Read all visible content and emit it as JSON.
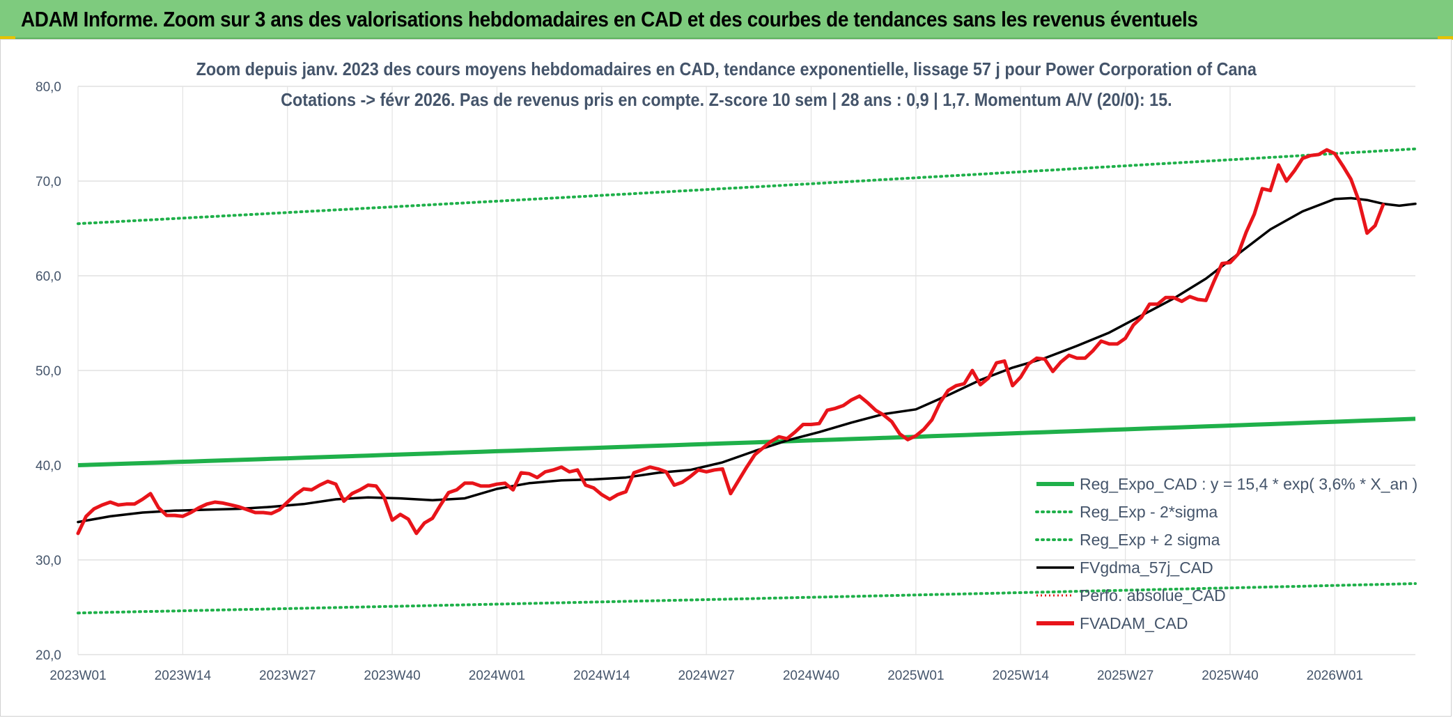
{
  "banner": {
    "title": "ADAM Informe. Zoom sur 3 ans des valorisations hebdomadaires en CAD et des courbes de tendances sans les revenus éventuels"
  },
  "chart_data": {
    "type": "line",
    "title": "Zoom depuis janv. 2023 des cours moyens hebdomadaires en CAD, tendance exponentielle, lissage 57 j pour Power Corporation of Cana",
    "subtitle": "Cotations -> févr 2026. Pas de revenus pris en compte. Z-score 10 sem | 28 ans : 0,9 | 1,7. Momentum A/V (20/0): 15.",
    "xlabel": "",
    "ylabel": "",
    "ylim": [
      20,
      80
    ],
    "yticks": [
      "80,0",
      "70,0",
      "60,0",
      "50,0",
      "40,0",
      "30,0",
      "20,0"
    ],
    "x_tick_labels": [
      "2023W01",
      "2023W14",
      "2023W27",
      "2023W40",
      "2024W01",
      "2024W14",
      "2024W27",
      "2024W40",
      "2025W01",
      "2025W14",
      "2025W27",
      "2025W40",
      "2026W01"
    ],
    "x_tick_index": [
      0,
      13,
      26,
      39,
      52,
      65,
      78,
      91,
      104,
      117,
      130,
      143,
      156
    ],
    "x_count": 166,
    "grid": true,
    "legend_position": "bottom-right",
    "series": [
      {
        "name": "Reg_Expo_CAD : y = 15,4 * exp( 3,6% *  X_an )",
        "color": "#1fb04a",
        "style": "thick",
        "start": 40.0,
        "end": 44.9
      },
      {
        "name": "Reg_Exp - 2*sigma",
        "color": "#1fb04a",
        "style": "dotted",
        "start": 24.4,
        "end": 27.5
      },
      {
        "name": "Reg_Exp + 2 sigma",
        "color": "#1fb04a",
        "style": "dotted",
        "start": 65.5,
        "end": 73.4
      },
      {
        "name": "FVgdma_57j_CAD",
        "color": "#000000",
        "style": "solid",
        "points": [
          [
            0,
            34.0
          ],
          [
            4,
            34.6
          ],
          [
            8,
            35.0
          ],
          [
            12,
            35.2
          ],
          [
            16,
            35.3
          ],
          [
            20,
            35.4
          ],
          [
            24,
            35.6
          ],
          [
            28,
            35.9
          ],
          [
            32,
            36.4
          ],
          [
            36,
            36.6
          ],
          [
            40,
            36.5
          ],
          [
            44,
            36.3
          ],
          [
            48,
            36.5
          ],
          [
            52,
            37.5
          ],
          [
            56,
            38.1
          ],
          [
            60,
            38.4
          ],
          [
            64,
            38.5
          ],
          [
            68,
            38.7
          ],
          [
            72,
            39.2
          ],
          [
            76,
            39.5
          ],
          [
            80,
            40.3
          ],
          [
            84,
            41.5
          ],
          [
            88,
            42.6
          ],
          [
            92,
            43.5
          ],
          [
            96,
            44.5
          ],
          [
            100,
            45.4
          ],
          [
            104,
            45.9
          ],
          [
            108,
            47.4
          ],
          [
            112,
            49.0
          ],
          [
            116,
            50.3
          ],
          [
            120,
            51.3
          ],
          [
            124,
            52.6
          ],
          [
            128,
            54.0
          ],
          [
            132,
            55.8
          ],
          [
            136,
            57.6
          ],
          [
            140,
            59.7
          ],
          [
            144,
            62.3
          ],
          [
            148,
            64.9
          ],
          [
            152,
            66.8
          ],
          [
            156,
            68.1
          ],
          [
            158,
            68.2
          ],
          [
            160,
            68.0
          ],
          [
            162,
            67.6
          ],
          [
            164,
            67.4
          ],
          [
            166,
            67.6
          ]
        ]
      },
      {
        "name": "Perfo. absolue_CAD",
        "color": "#e21b1b",
        "style": "dotted-thin"
      },
      {
        "name": "FVADAM_CAD",
        "color": "#e8141a",
        "style": "thick",
        "points": [
          [
            0,
            32.8
          ],
          [
            1,
            34.6
          ],
          [
            2,
            35.4
          ],
          [
            3,
            35.8
          ],
          [
            4,
            36.1
          ],
          [
            5,
            35.8
          ],
          [
            6,
            35.9
          ],
          [
            7,
            35.9
          ],
          [
            8,
            36.4
          ],
          [
            9,
            37.0
          ],
          [
            10,
            35.5
          ],
          [
            11,
            34.7
          ],
          [
            12,
            34.7
          ],
          [
            13,
            34.6
          ],
          [
            14,
            35.0
          ],
          [
            15,
            35.5
          ],
          [
            16,
            35.9
          ],
          [
            17,
            36.1
          ],
          [
            18,
            36.0
          ],
          [
            19,
            35.8
          ],
          [
            20,
            35.6
          ],
          [
            21,
            35.3
          ],
          [
            22,
            35.0
          ],
          [
            23,
            35.0
          ],
          [
            24,
            34.9
          ],
          [
            25,
            35.3
          ],
          [
            26,
            36.1
          ],
          [
            27,
            36.9
          ],
          [
            28,
            37.5
          ],
          [
            29,
            37.4
          ],
          [
            30,
            37.9
          ],
          [
            31,
            38.3
          ],
          [
            32,
            38.0
          ],
          [
            33,
            36.2
          ],
          [
            34,
            37.0
          ],
          [
            35,
            37.4
          ],
          [
            36,
            37.9
          ],
          [
            37,
            37.8
          ],
          [
            38,
            36.6
          ],
          [
            39,
            34.2
          ],
          [
            40,
            34.8
          ],
          [
            41,
            34.3
          ],
          [
            42,
            32.8
          ],
          [
            43,
            33.9
          ],
          [
            44,
            34.4
          ],
          [
            45,
            35.8
          ],
          [
            46,
            37.1
          ],
          [
            47,
            37.4
          ],
          [
            48,
            38.1
          ],
          [
            49,
            38.1
          ],
          [
            50,
            37.8
          ],
          [
            51,
            37.8
          ],
          [
            52,
            38.0
          ],
          [
            53,
            38.1
          ],
          [
            54,
            37.4
          ],
          [
            55,
            39.2
          ],
          [
            56,
            39.1
          ],
          [
            57,
            38.7
          ],
          [
            58,
            39.3
          ],
          [
            59,
            39.5
          ],
          [
            60,
            39.8
          ],
          [
            61,
            39.3
          ],
          [
            62,
            39.5
          ],
          [
            63,
            37.9
          ],
          [
            64,
            37.6
          ],
          [
            65,
            36.9
          ],
          [
            66,
            36.4
          ],
          [
            67,
            36.9
          ],
          [
            68,
            37.2
          ],
          [
            69,
            39.2
          ],
          [
            70,
            39.5
          ],
          [
            71,
            39.8
          ],
          [
            72,
            39.6
          ],
          [
            73,
            39.3
          ],
          [
            74,
            37.9
          ],
          [
            75,
            38.2
          ],
          [
            76,
            38.8
          ],
          [
            77,
            39.5
          ],
          [
            78,
            39.3
          ],
          [
            79,
            39.5
          ],
          [
            80,
            39.6
          ],
          [
            81,
            37.0
          ],
          [
            82,
            38.4
          ],
          [
            83,
            39.8
          ],
          [
            84,
            41.1
          ],
          [
            85,
            41.8
          ],
          [
            86,
            42.5
          ],
          [
            87,
            43.0
          ],
          [
            88,
            42.8
          ],
          [
            89,
            43.5
          ],
          [
            90,
            44.3
          ],
          [
            91,
            44.3
          ],
          [
            92,
            44.4
          ],
          [
            93,
            45.8
          ],
          [
            94,
            46.0
          ],
          [
            95,
            46.3
          ],
          [
            96,
            46.9
          ],
          [
            97,
            47.3
          ],
          [
            98,
            46.6
          ],
          [
            99,
            45.8
          ],
          [
            100,
            45.3
          ],
          [
            101,
            44.6
          ],
          [
            102,
            43.3
          ],
          [
            103,
            42.7
          ],
          [
            104,
            43.1
          ],
          [
            105,
            43.8
          ],
          [
            106,
            44.8
          ],
          [
            107,
            46.6
          ],
          [
            108,
            47.9
          ],
          [
            109,
            48.4
          ],
          [
            110,
            48.6
          ],
          [
            111,
            50.0
          ],
          [
            112,
            48.5
          ],
          [
            113,
            49.2
          ],
          [
            114,
            50.8
          ],
          [
            115,
            51.0
          ],
          [
            116,
            48.4
          ],
          [
            117,
            49.3
          ],
          [
            118,
            50.7
          ],
          [
            119,
            51.3
          ],
          [
            120,
            51.2
          ],
          [
            121,
            49.9
          ],
          [
            122,
            50.9
          ],
          [
            123,
            51.6
          ],
          [
            124,
            51.3
          ],
          [
            125,
            51.3
          ],
          [
            126,
            52.1
          ],
          [
            127,
            53.1
          ],
          [
            128,
            52.8
          ],
          [
            129,
            52.8
          ],
          [
            130,
            53.4
          ],
          [
            131,
            54.8
          ],
          [
            132,
            55.6
          ],
          [
            133,
            57.0
          ],
          [
            134,
            57.0
          ],
          [
            135,
            57.7
          ],
          [
            136,
            57.7
          ],
          [
            137,
            57.3
          ],
          [
            138,
            57.8
          ],
          [
            139,
            57.5
          ],
          [
            140,
            57.4
          ],
          [
            141,
            59.4
          ],
          [
            142,
            61.3
          ],
          [
            143,
            61.4
          ],
          [
            144,
            62.3
          ],
          [
            145,
            64.6
          ],
          [
            146,
            66.5
          ],
          [
            147,
            69.2
          ],
          [
            148,
            69.0
          ],
          [
            149,
            71.7
          ],
          [
            150,
            70.0
          ],
          [
            151,
            71.1
          ],
          [
            152,
            72.4
          ],
          [
            153,
            72.7
          ],
          [
            154,
            72.8
          ],
          [
            155,
            73.3
          ],
          [
            156,
            72.9
          ],
          [
            157,
            71.6
          ],
          [
            158,
            70.2
          ],
          [
            159,
            67.9
          ],
          [
            160,
            64.5
          ],
          [
            161,
            65.3
          ],
          [
            162,
            67.5
          ]
        ]
      }
    ]
  }
}
